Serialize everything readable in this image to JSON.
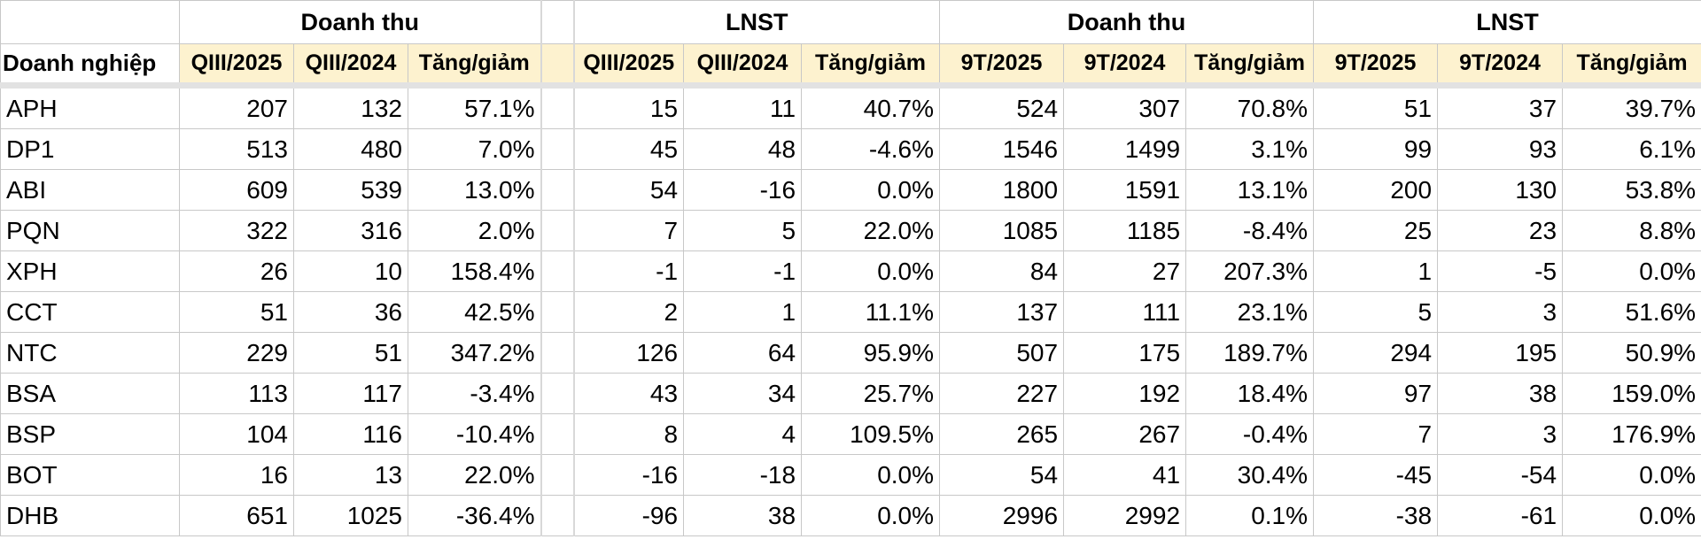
{
  "header": {
    "groups": [
      "Doanh thu",
      "LNST",
      "Doanh thu",
      "LNST"
    ],
    "columns": [
      "Doanh nghiệp",
      "QIII/2025",
      "QIII/2024",
      "Tăng/giảm",
      "QIII/2025",
      "QIII/2024",
      "Tăng/giảm",
      "9T/2025",
      "9T/2024",
      "Tăng/giảm",
      "9T/2025",
      "9T/2024",
      "Tăng/giảm"
    ]
  },
  "table": {
    "rows": [
      [
        "APH",
        "207",
        "132",
        "57.1%",
        "15",
        "11",
        "40.7%",
        "524",
        "307",
        "70.8%",
        "51",
        "37",
        "39.7%"
      ],
      [
        "DP1",
        "513",
        "480",
        "7.0%",
        "45",
        "48",
        "-4.6%",
        "1546",
        "1499",
        "3.1%",
        "99",
        "93",
        "6.1%"
      ],
      [
        "ABI",
        "609",
        "539",
        "13.0%",
        "54",
        "-16",
        "0.0%",
        "1800",
        "1591",
        "13.1%",
        "200",
        "130",
        "53.8%"
      ],
      [
        "PQN",
        "322",
        "316",
        "2.0%",
        "7",
        "5",
        "22.0%",
        "1085",
        "1185",
        "-8.4%",
        "25",
        "23",
        "8.8%"
      ],
      [
        "XPH",
        "26",
        "10",
        "158.4%",
        "-1",
        "-1",
        "0.0%",
        "84",
        "27",
        "207.3%",
        "1",
        "-5",
        "0.0%"
      ],
      [
        "CCT",
        "51",
        "36",
        "42.5%",
        "2",
        "1",
        "11.1%",
        "137",
        "111",
        "23.1%",
        "5",
        "3",
        "51.6%"
      ],
      [
        "NTC",
        "229",
        "51",
        "347.2%",
        "126",
        "64",
        "95.9%",
        "507",
        "175",
        "189.7%",
        "294",
        "195",
        "50.9%"
      ],
      [
        "BSA",
        "113",
        "117",
        "-3.4%",
        "43",
        "34",
        "25.7%",
        "227",
        "192",
        "18.4%",
        "97",
        "38",
        "159.0%"
      ],
      [
        "BSP",
        "104",
        "116",
        "-10.4%",
        "8",
        "4",
        "109.5%",
        "265",
        "267",
        "-0.4%",
        "7",
        "3",
        "176.9%"
      ],
      [
        "BOT",
        "16",
        "13",
        "22.0%",
        "-16",
        "-18",
        "0.0%",
        "54",
        "41",
        "30.4%",
        "-45",
        "-54",
        "0.0%"
      ],
      [
        "DHB",
        "651",
        "1025",
        "-36.4%",
        "-96",
        "38",
        "0.0%",
        "2996",
        "2992",
        "0.1%",
        "-38",
        "-61",
        "0.0%"
      ]
    ]
  }
}
